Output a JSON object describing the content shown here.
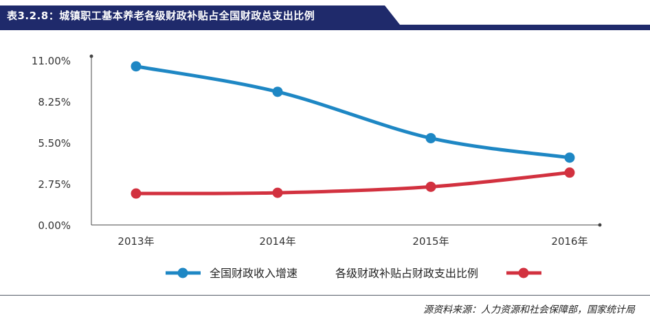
{
  "header": {
    "title": "表3.2.8：城镇职工基本养老各级财政补贴占全国财政总支出比例",
    "bar_color": "#1f2a6b"
  },
  "chart_data": {
    "type": "line",
    "title": "",
    "xlabel": "",
    "ylabel": "",
    "categories": [
      "2013年",
      "2014年",
      "2015年",
      "2016年"
    ],
    "y_ticks": [
      "0.00%",
      "2.75%",
      "5.50%",
      "8.25%",
      "11.00%"
    ],
    "ylim": [
      0,
      11
    ],
    "grid": false,
    "legend_position": "bottom",
    "series": [
      {
        "name": "全国财政收入增速",
        "color": "#1e87c4",
        "values": [
          10.6,
          8.9,
          5.8,
          4.5
        ]
      },
      {
        "name": "各级财政补贴占财政支出比例",
        "color": "#d2313f",
        "values": [
          2.1,
          2.15,
          2.55,
          3.5
        ]
      }
    ]
  },
  "source": "源资料来源：人力资源和社会保障部，国家统计局"
}
